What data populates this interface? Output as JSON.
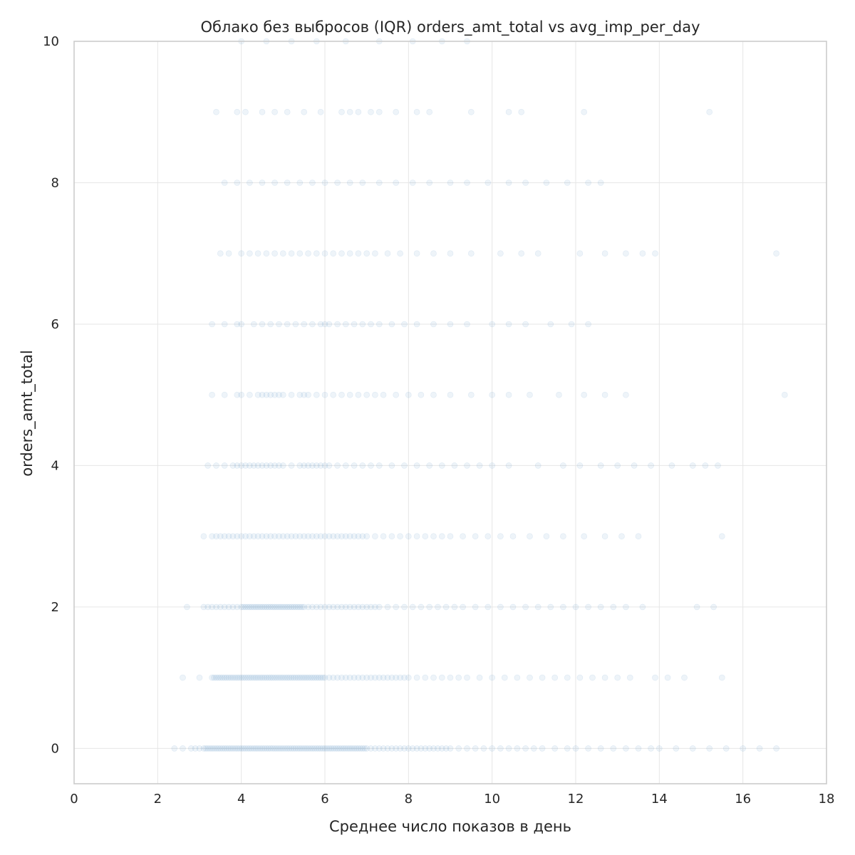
{
  "chart_data": {
    "type": "scatter",
    "title": "Облако без выбросов (IQR) orders_amt_total vs avg_imp_per_day",
    "xlabel": "Среднее число показов в день",
    "ylabel": "orders_amt_total",
    "xlim": [
      0,
      18
    ],
    "ylim": [
      -0.5,
      10
    ],
    "xticks": [
      0,
      2,
      4,
      6,
      8,
      10,
      12,
      14,
      16,
      18
    ],
    "yticks": [
      0,
      2,
      4,
      6,
      8,
      10
    ],
    "grid": true,
    "point_color": "#2a77b4",
    "point_opacity": 0.08,
    "series": [
      {
        "rows": [
          {
            "y": 0,
            "x": [
              2.4,
              2.6,
              2.8,
              2.9,
              3.0,
              3.1,
              3.15,
              3.2,
              3.25,
              3.3,
              3.35,
              3.4,
              3.45,
              3.5,
              3.55,
              3.6,
              3.65,
              3.7,
              3.75,
              3.8,
              3.85,
              3.9,
              3.95,
              4.0,
              4.05,
              4.1,
              4.15,
              4.2,
              4.25,
              4.3,
              4.35,
              4.4,
              4.45,
              4.5,
              4.55,
              4.6,
              4.65,
              4.7,
              4.75,
              4.8,
              4.85,
              4.9,
              4.95,
              5.0,
              5.05,
              5.1,
              5.15,
              5.2,
              5.25,
              5.3,
              5.35,
              5.4,
              5.45,
              5.5,
              5.55,
              5.6,
              5.65,
              5.7,
              5.75,
              5.8,
              5.85,
              5.9,
              5.95,
              6.0,
              6.05,
              6.1,
              6.15,
              6.2,
              6.25,
              6.3,
              6.35,
              6.4,
              6.45,
              6.5,
              6.55,
              6.6,
              6.65,
              6.7,
              6.75,
              6.8,
              6.85,
              6.9,
              6.95,
              7.0,
              7.1,
              7.2,
              7.3,
              7.4,
              7.5,
              7.6,
              7.7,
              7.8,
              7.9,
              8.0,
              8.1,
              8.2,
              8.3,
              8.4,
              8.5,
              8.6,
              8.7,
              8.8,
              8.9,
              9.0,
              9.2,
              9.4,
              9.6,
              9.8,
              10.0,
              10.2,
              10.4,
              10.6,
              10.8,
              11.0,
              11.2,
              11.5,
              11.8,
              12.0,
              12.3,
              12.6,
              12.9,
              13.2,
              13.5,
              13.8,
              14.0,
              14.4,
              14.8,
              15.2,
              15.6,
              16.0,
              16.4,
              16.8
            ]
          },
          {
            "y": 1,
            "x": [
              2.6,
              3.0,
              3.3,
              3.35,
              3.4,
              3.45,
              3.5,
              3.55,
              3.6,
              3.65,
              3.7,
              3.75,
              3.8,
              3.85,
              3.9,
              3.95,
              4.0,
              4.05,
              4.1,
              4.15,
              4.2,
              4.25,
              4.3,
              4.35,
              4.4,
              4.45,
              4.5,
              4.55,
              4.6,
              4.65,
              4.7,
              4.75,
              4.8,
              4.85,
              4.9,
              4.95,
              5.0,
              5.05,
              5.1,
              5.15,
              5.2,
              5.25,
              5.3,
              5.35,
              5.4,
              5.45,
              5.5,
              5.55,
              5.6,
              5.65,
              5.7,
              5.75,
              5.8,
              5.85,
              5.9,
              5.95,
              6.0,
              6.1,
              6.2,
              6.3,
              6.4,
              6.5,
              6.6,
              6.7,
              6.8,
              6.9,
              7.0,
              7.1,
              7.2,
              7.3,
              7.4,
              7.5,
              7.6,
              7.7,
              7.8,
              7.9,
              8.0,
              8.2,
              8.4,
              8.6,
              8.8,
              9.0,
              9.2,
              9.4,
              9.7,
              10.0,
              10.3,
              10.6,
              10.9,
              11.2,
              11.5,
              11.8,
              12.1,
              12.4,
              12.7,
              13.0,
              13.3,
              13.9,
              14.2,
              14.6,
              15.5
            ]
          },
          {
            "y": 2,
            "x": [
              2.7,
              3.1,
              3.2,
              3.3,
              3.4,
              3.5,
              3.6,
              3.7,
              3.8,
              3.9,
              4.0,
              4.05,
              4.1,
              4.15,
              4.2,
              4.25,
              4.3,
              4.35,
              4.4,
              4.45,
              4.5,
              4.55,
              4.6,
              4.65,
              4.7,
              4.75,
              4.8,
              4.85,
              4.9,
              4.95,
              5.0,
              5.05,
              5.1,
              5.15,
              5.2,
              5.25,
              5.3,
              5.35,
              5.4,
              5.45,
              5.5,
              5.6,
              5.7,
              5.8,
              5.9,
              6.0,
              6.1,
              6.2,
              6.3,
              6.4,
              6.5,
              6.6,
              6.7,
              6.8,
              6.9,
              7.0,
              7.1,
              7.2,
              7.3,
              7.5,
              7.7,
              7.9,
              8.1,
              8.3,
              8.5,
              8.7,
              8.9,
              9.1,
              9.3,
              9.6,
              9.9,
              10.2,
              10.5,
              10.8,
              11.1,
              11.4,
              11.7,
              12.0,
              12.3,
              12.6,
              12.9,
              13.2,
              13.6,
              14.9,
              15.3
            ]
          },
          {
            "y": 3,
            "x": [
              3.1,
              3.3,
              3.4,
              3.5,
              3.6,
              3.7,
              3.8,
              3.9,
              4.0,
              4.1,
              4.2,
              4.3,
              4.4,
              4.5,
              4.6,
              4.7,
              4.8,
              4.9,
              5.0,
              5.1,
              5.2,
              5.3,
              5.4,
              5.5,
              5.6,
              5.7,
              5.8,
              5.9,
              6.0,
              6.1,
              6.2,
              6.3,
              6.4,
              6.5,
              6.6,
              6.7,
              6.8,
              6.9,
              7.0,
              7.2,
              7.4,
              7.6,
              7.8,
              8.0,
              8.2,
              8.4,
              8.6,
              8.8,
              9.0,
              9.3,
              9.6,
              9.9,
              10.2,
              10.5,
              10.9,
              11.3,
              11.7,
              12.2,
              12.7,
              13.1,
              13.5,
              15.5
            ]
          },
          {
            "y": 4,
            "x": [
              3.2,
              3.4,
              3.6,
              3.8,
              3.9,
              4.0,
              4.1,
              4.2,
              4.3,
              4.4,
              4.5,
              4.6,
              4.7,
              4.8,
              4.9,
              5.0,
              5.2,
              5.4,
              5.5,
              5.6,
              5.7,
              5.8,
              5.9,
              6.0,
              6.1,
              6.3,
              6.5,
              6.7,
              6.9,
              7.1,
              7.3,
              7.6,
              7.9,
              8.2,
              8.5,
              8.8,
              9.1,
              9.4,
              9.7,
              10.0,
              10.4,
              11.1,
              11.7,
              12.1,
              12.6,
              13.0,
              13.4,
              13.8,
              14.3,
              14.8,
              15.1,
              15.4
            ]
          },
          {
            "y": 5,
            "x": [
              3.3,
              3.6,
              3.9,
              4.0,
              4.2,
              4.4,
              4.5,
              4.6,
              4.7,
              4.8,
              4.9,
              5.0,
              5.2,
              5.4,
              5.5,
              5.6,
              5.8,
              6.0,
              6.2,
              6.4,
              6.6,
              6.8,
              7.0,
              7.2,
              7.4,
              7.7,
              8.0,
              8.3,
              8.6,
              9.0,
              9.5,
              10.0,
              10.4,
              10.9,
              11.6,
              12.2,
              12.7,
              13.2,
              17.0
            ]
          },
          {
            "y": 6,
            "x": [
              3.3,
              3.6,
              3.9,
              4.0,
              4.3,
              4.5,
              4.7,
              4.9,
              5.1,
              5.3,
              5.5,
              5.7,
              5.9,
              6.0,
              6.1,
              6.3,
              6.5,
              6.7,
              6.9,
              7.1,
              7.3,
              7.6,
              7.9,
              8.2,
              8.6,
              9.0,
              9.4,
              10.0,
              10.4,
              10.8,
              11.4,
              11.9,
              12.3
            ]
          },
          {
            "y": 7,
            "x": [
              3.5,
              3.7,
              4.0,
              4.2,
              4.4,
              4.6,
              4.8,
              5.0,
              5.2,
              5.4,
              5.6,
              5.8,
              6.0,
              6.2,
              6.4,
              6.6,
              6.8,
              7.0,
              7.2,
              7.5,
              7.8,
              8.2,
              8.6,
              9.0,
              9.5,
              10.2,
              10.7,
              11.1,
              12.1,
              12.7,
              13.2,
              13.6,
              13.9,
              16.8
            ]
          },
          {
            "y": 8,
            "x": [
              3.6,
              3.9,
              4.2,
              4.5,
              4.8,
              5.1,
              5.4,
              5.7,
              6.0,
              6.3,
              6.6,
              6.9,
              7.3,
              7.7,
              8.1,
              8.5,
              9.0,
              9.4,
              9.9,
              10.4,
              10.8,
              11.3,
              11.8,
              12.3,
              12.6
            ]
          },
          {
            "y": 9,
            "x": [
              3.4,
              3.9,
              4.1,
              4.5,
              4.8,
              5.1,
              5.5,
              5.9,
              6.4,
              6.6,
              6.8,
              7.1,
              7.3,
              7.7,
              8.2,
              8.5,
              9.5,
              10.4,
              10.7,
              12.2,
              15.2
            ]
          },
          {
            "y": 10,
            "x": [
              4.0,
              4.6,
              5.2,
              5.8,
              6.5,
              7.3,
              8.1,
              8.8,
              9.4
            ]
          }
        ]
      }
    ]
  }
}
